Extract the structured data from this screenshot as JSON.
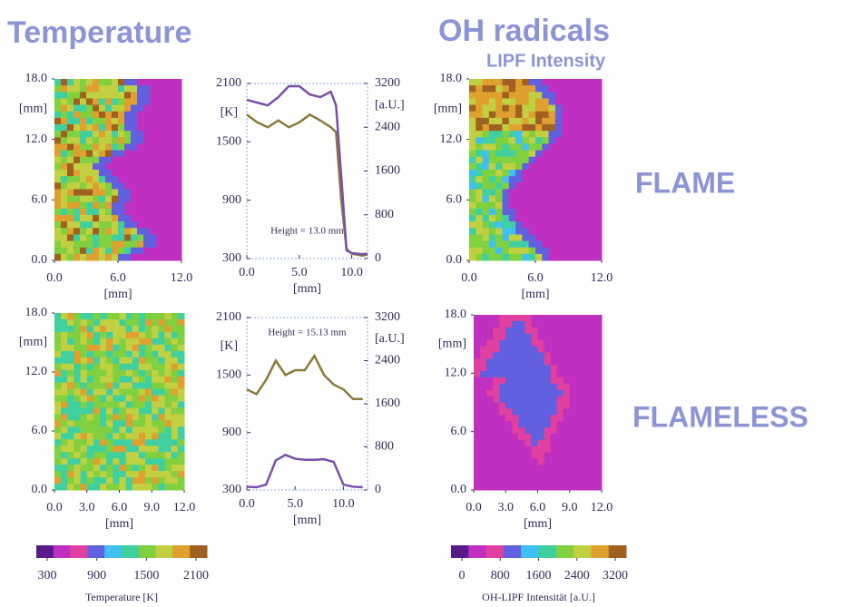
{
  "headings": {
    "temperature": "Temperature",
    "oh": "OH radicals",
    "lipf": "LIPF Intensity",
    "flame": "FLAME",
    "flameless": "FLAMELESS"
  },
  "chart_data": [
    {
      "type": "heatmap",
      "xlabel": "[mm]",
      "ylabel": "[mm]",
      "xlim": [
        0,
        12
      ],
      "ylim": [
        0,
        18
      ],
      "xticks": [
        {
          "value": 0,
          "label": "0.0"
        },
        {
          "value": 6,
          "label": "6.0"
        },
        {
          "value": 12,
          "label": "12.0"
        }
      ],
      "yticks": [
        {
          "value": 0,
          "label": "0.0"
        },
        {
          "value": 6,
          "label": "6.0"
        },
        {
          "value": 12,
          "label": "12.0"
        },
        {
          "value": 18,
          "label": "18.0"
        }
      ]
    },
    {
      "type": "line",
      "annotation": "Height = 13.0 mm",
      "xlabel": "[mm]",
      "ylabel": "[K]",
      "y2label": "[a.U.]",
      "xlim": [
        0,
        11.5
      ],
      "xticks": [
        {
          "value": 0,
          "label": "0.0"
        },
        {
          "value": 5,
          "label": "5.0"
        },
        {
          "value": 10,
          "label": "10.0"
        }
      ],
      "ylim": [
        300,
        2100
      ],
      "yticks": [
        300,
        900,
        1500,
        2100
      ],
      "y2lim": [
        0,
        3200
      ],
      "y2ticks": [
        0,
        800,
        1600,
        2400,
        3200
      ],
      "x": [
        0,
        1,
        2,
        3,
        4,
        5,
        6,
        7,
        8,
        8.5,
        9,
        9.5,
        10,
        11,
        11.5
      ],
      "series": [
        {
          "color": "#8a7a3a",
          "values": [
            1780,
            1700,
            1650,
            1720,
            1650,
            1700,
            1780,
            1720,
            1650,
            1600,
            900,
            400,
            350,
            330,
            340
          ]
        },
        {
          "color": "#7a4fa8",
          "axis": "y2",
          "values": [
            2900,
            2850,
            2800,
            2950,
            3150,
            3150,
            3000,
            2950,
            3050,
            2800,
            1500,
            150,
            100,
            80,
            90
          ]
        }
      ]
    },
    {
      "type": "heatmap",
      "xlabel": "[mm]",
      "ylabel": "[mm]",
      "xlim": [
        0,
        12
      ],
      "ylim": [
        0,
        18
      ],
      "xticks": [
        {
          "value": 0,
          "label": "0.0"
        },
        {
          "value": 6,
          "label": "6.0"
        },
        {
          "value": 12,
          "label": "12.0"
        }
      ],
      "yticks": [
        {
          "value": 0,
          "label": "0.0"
        },
        {
          "value": 6,
          "label": "6.0"
        },
        {
          "value": 12,
          "label": "12.0"
        },
        {
          "value": 18,
          "label": "18.0"
        }
      ]
    },
    {
      "type": "heatmap",
      "xlabel": "[mm]",
      "ylabel": "[mm]",
      "xlim": [
        0,
        12
      ],
      "ylim": [
        0,
        18
      ],
      "xticks": [
        {
          "value": 0,
          "label": "0.0"
        },
        {
          "value": 3,
          "label": "3.0"
        },
        {
          "value": 6,
          "label": "6.0"
        },
        {
          "value": 9,
          "label": "9.0"
        },
        {
          "value": 12,
          "label": "12.0"
        }
      ],
      "yticks": [
        {
          "value": 0,
          "label": "0.0"
        },
        {
          "value": 6,
          "label": "6.0"
        },
        {
          "value": 12,
          "label": "12.0"
        },
        {
          "value": 18,
          "label": "18.0"
        }
      ]
    },
    {
      "type": "line",
      "annotation": "Height = 15.13 mm",
      "xlabel": "[mm]",
      "ylabel": "[K]",
      "y2label": "[a.U.]",
      "xlim": [
        0,
        12.5
      ],
      "xticks": [
        {
          "value": 0,
          "label": "0.0"
        },
        {
          "value": 5,
          "label": "5.0"
        },
        {
          "value": 10,
          "label": "10.0"
        }
      ],
      "ylim": [
        300,
        2100
      ],
      "yticks": [
        300,
        900,
        1500,
        2100
      ],
      "y2lim": [
        0,
        3200
      ],
      "y2ticks": [
        0,
        800,
        1600,
        2400,
        3200
      ],
      "x": [
        0,
        1,
        2,
        3,
        4,
        5,
        6,
        7,
        8,
        9,
        10,
        11,
        12
      ],
      "series": [
        {
          "color": "#8a7a3a",
          "values": [
            1350,
            1300,
            1450,
            1650,
            1500,
            1550,
            1550,
            1700,
            1500,
            1400,
            1350,
            1250,
            1250
          ]
        },
        {
          "color": "#7a4fa8",
          "axis": "y2",
          "values": [
            60,
            50,
            100,
            550,
            650,
            580,
            560,
            560,
            570,
            520,
            100,
            60,
            50
          ]
        }
      ]
    },
    {
      "type": "heatmap",
      "xlabel": "[mm]",
      "ylabel": "[mm]",
      "xlim": [
        0,
        12
      ],
      "ylim": [
        0,
        18
      ],
      "xticks": [
        {
          "value": 0,
          "label": "0.0"
        },
        {
          "value": 3,
          "label": "3.0"
        },
        {
          "value": 6,
          "label": "6.0"
        },
        {
          "value": 9,
          "label": "9.0"
        },
        {
          "value": 12,
          "label": "12.0"
        }
      ],
      "yticks": [
        {
          "value": 0,
          "label": "0.0"
        },
        {
          "value": 6,
          "label": "6.0"
        },
        {
          "value": 12,
          "label": "12.0"
        },
        {
          "value": 18,
          "label": "18.0"
        }
      ]
    },
    {
      "type": "colorbar",
      "label": "Temperature [K]",
      "xlim": [
        300,
        2100
      ],
      "xticks": [
        300,
        900,
        1500,
        2100
      ],
      "colors": [
        "#5a1a8a",
        "#c030c0",
        "#e040a0",
        "#6060e0",
        "#40c0f0",
        "#40d0a0",
        "#80d040",
        "#c0d040",
        "#e0a030",
        "#a06020"
      ]
    },
    {
      "type": "colorbar",
      "label": "OH-LIPF Intensität [a.U.]",
      "xlim": [
        0,
        3200
      ],
      "xticks": [
        0,
        800,
        1600,
        2400,
        3200
      ],
      "colors": [
        "#5a1a8a",
        "#c030c0",
        "#e040a0",
        "#6060e0",
        "#40c0f0",
        "#40d0a0",
        "#80d040",
        "#c0d040",
        "#e0a030",
        "#a06020"
      ]
    }
  ]
}
